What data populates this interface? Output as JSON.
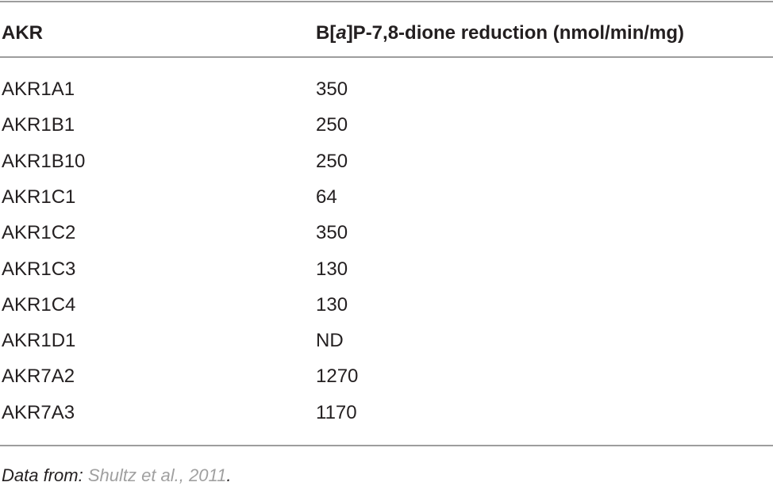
{
  "table": {
    "header": [
      "AKR",
      [
        "B[",
        "a",
        "]P-7,8-dione reduction (nmol/min/mg)"
      ]
    ],
    "rows": [
      [
        "AKR1A1",
        350
      ],
      [
        "AKR1B1",
        250
      ],
      [
        "AKR1B10",
        250
      ],
      [
        "AKR1C1",
        64
      ],
      [
        "AKR1C2",
        350
      ],
      [
        "AKR1C3",
        130
      ],
      [
        "AKR1C4",
        130
      ],
      [
        "AKR1D1",
        "ND"
      ],
      [
        "AKR7A2",
        1270
      ],
      [
        "AKR7A3",
        1170
      ]
    ]
  },
  "footnote": {
    "prefix": "Data from:",
    "link": "Shultz et al., 2011",
    "suffix": "."
  }
}
